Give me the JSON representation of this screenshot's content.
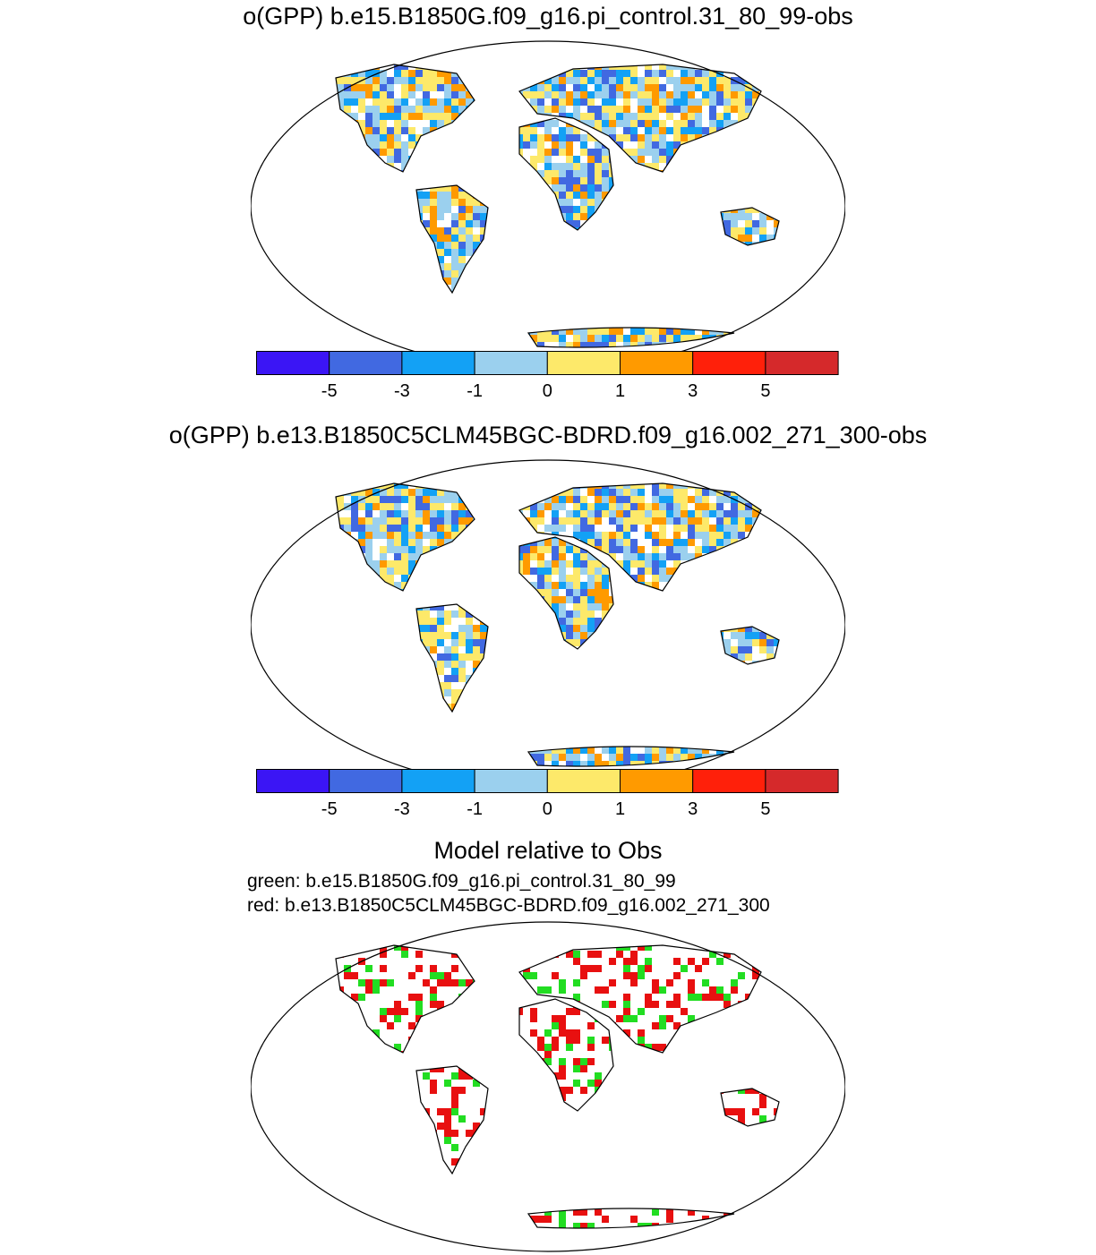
{
  "panel1": {
    "title": "o(GPP) b.e15.B1850G.f09_g16.pi_control.31_80_99-obs"
  },
  "panel2": {
    "title": "o(GPP) b.e13.B1850C5CLM45BGC-BDRD.f09_g16.002_271_300-obs"
  },
  "colorbar": {
    "tick_labels": [
      "-5",
      "-3",
      "-1",
      "0",
      "1",
      "3",
      "5"
    ],
    "colors": [
      "#3b15f5",
      "#4169e1",
      "#13a1f5",
      "#9bd0ee",
      "#fde96a",
      "#ff9a00",
      "#ff200a",
      "#d5292b"
    ]
  },
  "panel3": {
    "title": "Model relative to Obs",
    "legend_green": "green: b.e15.B1850G.f09_g16.pi_control.31_80_99",
    "legend_red": "red: b.e13.B1850C5CLM45BGC-BDRD.f09_g16.002_271_300",
    "colors": {
      "green": "#22dd22",
      "red": "#e81010"
    }
  }
}
